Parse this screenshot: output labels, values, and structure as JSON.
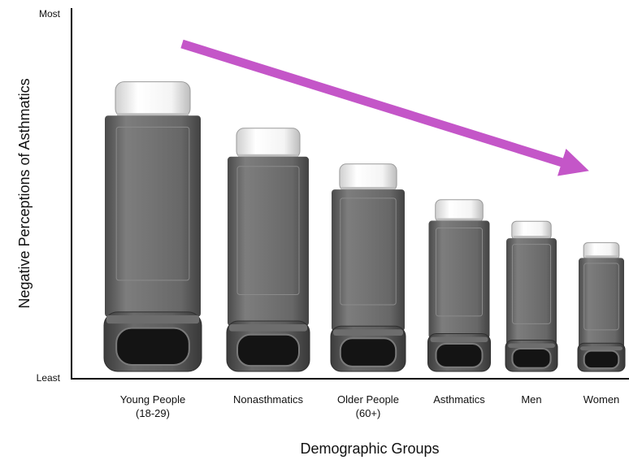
{
  "chart_data": {
    "type": "bar",
    "title": "",
    "xlabel": "Demographic Groups",
    "ylabel": "Negative Perceptions of Asthmatics",
    "y_tick_labels": {
      "top": "Most",
      "bottom": "Least"
    },
    "ylim": [
      0,
      100
    ],
    "categories": [
      [
        "Young People",
        "(18-29)"
      ],
      [
        "Nonasthmatics"
      ],
      [
        "Older People",
        "(60+)"
      ],
      [
        "Asthmatics"
      ],
      [
        "Men"
      ],
      [
        "Women"
      ]
    ],
    "values": [
      81,
      68,
      58,
      48,
      42,
      36
    ],
    "trend_arrow": {
      "direction": "decreasing",
      "color": "#c456c8"
    },
    "colors": {
      "body": "#6e6e6e",
      "cap": "#f1f1f1",
      "base": "#545454",
      "mouth": "#141414"
    }
  }
}
